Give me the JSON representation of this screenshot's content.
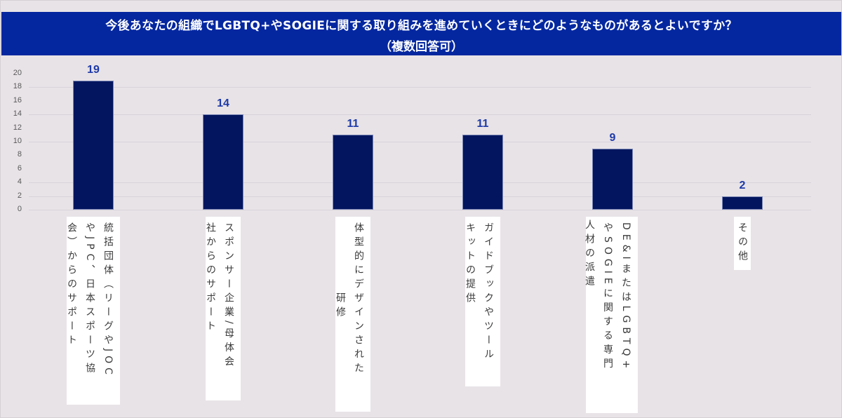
{
  "title": {
    "line1": "今後あなたの組織でLGBTQ+やSOGIEに関する取り組みを進めていくときにどのようなものがあるとよいですか？",
    "line2": "（複数回答可）"
  },
  "colors": {
    "title_band": "#0427a0",
    "bar": "#02155e",
    "value_label": "#1e3aa8",
    "background": "#e8e3e7"
  },
  "chart_data": {
    "type": "bar",
    "title": "今後あなたの組織でLGBTQ+やSOGIEに関する取り組みを進めていくときにどのようなものがあるとよいですか？（複数回答可）",
    "xlabel": "",
    "ylabel": "",
    "ylim": [
      0,
      20
    ],
    "yticks": [
      0,
      2,
      4,
      6,
      8,
      10,
      12,
      14,
      16,
      18,
      20
    ],
    "grid": true,
    "legend": null,
    "categories": [
      "統括団体（リーグやJOCやJPC、日本スポーツ協会）からのサポート",
      "スポンサー企業/母体会社からのサポート",
      "体型的にデザインされた研修",
      "ガイドブックやツールキットの提供",
      "DE&IまたはLGBTQ+やSOGIEに関する専門人材の派遣",
      "その他"
    ],
    "values": [
      19,
      14,
      11,
      11,
      9,
      2
    ],
    "data_labels": [
      "19",
      "14",
      "11",
      "11",
      "9",
      "2"
    ]
  },
  "y_axis": {
    "ticks": [
      "0",
      "2",
      "4",
      "6",
      "8",
      "10",
      "12",
      "14",
      "16",
      "18",
      "20"
    ]
  },
  "bars": [
    {
      "value": 19,
      "label": "19",
      "lines": [
        "統括団体（リーグやJOC",
        "やJPC、日本スポーツ協",
        "会）からのサポート"
      ]
    },
    {
      "value": 14,
      "label": "14",
      "lines": [
        "スポンサー企業/母体会",
        "社からのサポート"
      ]
    },
    {
      "value": 11,
      "label": "11",
      "lines": [
        "体型的にデザインされた",
        "研修"
      ]
    },
    {
      "value": 11,
      "label": "11",
      "lines": [
        "ガイドブックやツール",
        "キットの提供"
      ]
    },
    {
      "value": 9,
      "label": "9",
      "lines": [
        "DE&IまたはLGBTQ+",
        "やSOGIEに関する専門",
        "人材の派遣"
      ]
    },
    {
      "value": 2,
      "label": "2",
      "lines": [
        "その他"
      ]
    }
  ]
}
